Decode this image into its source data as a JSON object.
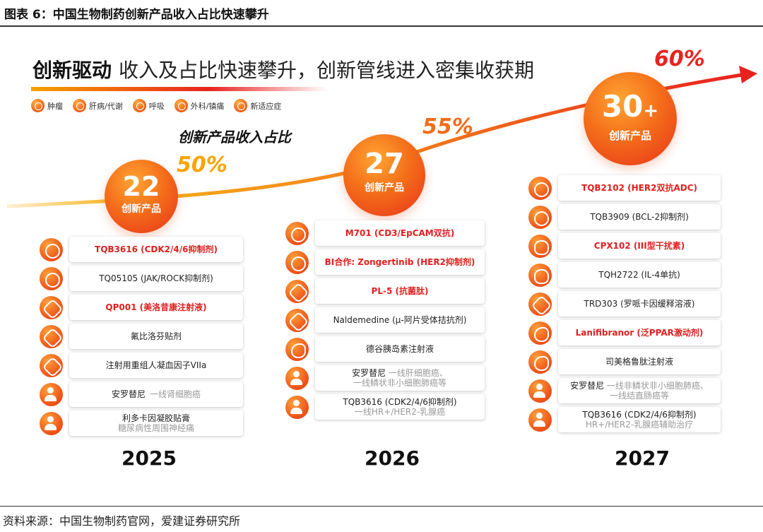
{
  "figure_title": "图表 6：中国生物制药创新产品收入占比快速攀升",
  "source": "资料来源：中国生物制药官网，爱建证券研究所",
  "headline": {
    "bold": "创新驱动",
    "rest": "收入及占比快速攀升，创新管线进入密集收获期"
  },
  "legend": [
    {
      "label": "肿瘤",
      "icon": "tumor-icon"
    },
    {
      "label": "肝病/代谢",
      "icon": "liver-icon"
    },
    {
      "label": "呼吸",
      "icon": "lung-icon"
    },
    {
      "label": "外科/镇痛",
      "icon": "patch-icon"
    },
    {
      "label": "新适应症",
      "icon": "person-plus-icon"
    }
  ],
  "subtitle": "创新产品收入占比",
  "colors": {
    "accent_orange": "#f46e1a",
    "accent_red": "#e8231f",
    "highlight_text": "#e01f1f"
  },
  "chart_data": {
    "type": "line",
    "title": "创新产品收入占比",
    "x": [
      "2025",
      "2026",
      "2027"
    ],
    "series": [
      {
        "name": "创新产品收入占比",
        "values": [
          50,
          55,
          60
        ],
        "value_labels": [
          "50%",
          "55%",
          "60%"
        ]
      },
      {
        "name": "创新产品",
        "values": [
          22,
          27,
          30
        ],
        "value_labels": [
          "22",
          "27",
          "30+"
        ]
      }
    ]
  },
  "years": [
    {
      "year": "2025",
      "count": "22",
      "count_suffix": "",
      "count_label": "创新产品",
      "pct": "50%",
      "items": [
        {
          "icon": "tumor",
          "text": "TQB3616 (CDK2/4/6抑制剂)",
          "highlight": true,
          "sub": ""
        },
        {
          "icon": "tumor",
          "text": "TQ05105 (JAK/ROCK抑制剂)",
          "highlight": false,
          "sub": ""
        },
        {
          "icon": "patch",
          "text": "QP001 (美洛昔康注射液)",
          "highlight": true,
          "sub": ""
        },
        {
          "icon": "patch",
          "text": "氟比洛芬贴剂",
          "highlight": false,
          "sub": ""
        },
        {
          "icon": "patch",
          "text": "注射用重组人凝血因子VIIa",
          "highlight": false,
          "sub": ""
        },
        {
          "icon": "person",
          "text": "安罗替尼",
          "highlight": false,
          "inline_sub": "一线肾细胞癌",
          "sub": ""
        },
        {
          "icon": "person",
          "text": "利多卡因凝胶贴膏",
          "highlight": false,
          "sub": "糖尿病性周围神经痛"
        }
      ]
    },
    {
      "year": "2026",
      "count": "27",
      "count_suffix": "",
      "count_label": "创新产品",
      "pct": "55%",
      "items": [
        {
          "icon": "tumor",
          "text": "M701 (CD3/EpCAM双抗)",
          "highlight": true,
          "sub": ""
        },
        {
          "icon": "tumor",
          "text": "BI合作: Zongertinib (HER2抑制剂)",
          "highlight": true,
          "sub": ""
        },
        {
          "icon": "patch",
          "text": "PL-5 (抗菌肽)",
          "highlight": true,
          "sub": ""
        },
        {
          "icon": "patch",
          "text": "Naldemedine (μ-阿片受体拮抗剂)",
          "highlight": false,
          "sub": ""
        },
        {
          "icon": "liver",
          "text": "德谷胰岛素注射液",
          "highlight": false,
          "sub": ""
        },
        {
          "icon": "person",
          "text": "安罗替尼",
          "highlight": false,
          "inline_sub": "一线肝细胞癌、",
          "sub": "一线鳞状非小细胞肺癌等"
        },
        {
          "icon": "person",
          "text": "TQB3616 (CDK2/4/6抑制剂)",
          "highlight": false,
          "sub": "一线HR+/HER2-乳腺癌"
        }
      ]
    },
    {
      "year": "2027",
      "count": "30",
      "count_suffix": "+",
      "count_label": "创新产品",
      "pct": "60%",
      "items": [
        {
          "icon": "tumor",
          "text": "TQB2102 (HER2双抗ADC)",
          "highlight": true,
          "sub": ""
        },
        {
          "icon": "tumor",
          "text": "TQB3909 (BCL-2抑制剂)",
          "highlight": false,
          "sub": ""
        },
        {
          "icon": "lung",
          "text": "CPX102 (III型干扰素)",
          "highlight": true,
          "sub": ""
        },
        {
          "icon": "lung",
          "text": "TQH2722 (IL-4单抗)",
          "highlight": false,
          "sub": ""
        },
        {
          "icon": "patch",
          "text": "TRD303 (罗哌卡因缓释溶液)",
          "highlight": false,
          "sub": ""
        },
        {
          "icon": "liver",
          "text": "Lanifibranor (泛PPAR激动剂)",
          "highlight": true,
          "sub": ""
        },
        {
          "icon": "liver",
          "text": "司美格鲁肽注射液",
          "highlight": false,
          "sub": ""
        },
        {
          "icon": "person",
          "text": "安罗替尼",
          "highlight": false,
          "inline_sub": "一线非鳞状非小细胞肺癌、",
          "sub": "一线结直肠癌等"
        },
        {
          "icon": "person",
          "text": "TQB3616 (CDK2/4/6抑制剂)",
          "highlight": false,
          "sub": "HR+/HER2-乳腺癌辅助治疗"
        }
      ]
    }
  ]
}
